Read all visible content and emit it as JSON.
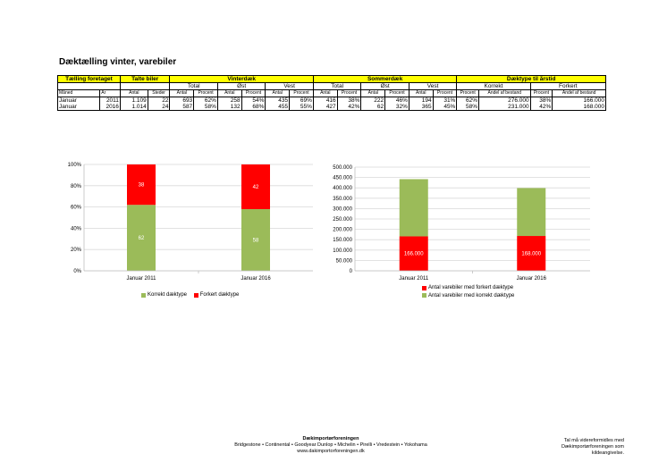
{
  "title": "Dæktælling vinter, varebiler",
  "table": {
    "group_headers": [
      "Tælling foretaget",
      "Talte biler",
      "Vinterdæk",
      "Sommerdæk",
      "Dæktype til årstid"
    ],
    "sub_headers": {
      "vinter": [
        "Total",
        "Øst",
        "Vest"
      ],
      "sommer": [
        "Total",
        "Øst",
        "Vest"
      ],
      "daektype": [
        "Korrekt",
        "Forkert"
      ]
    },
    "col_headers": [
      "Måned",
      "År",
      "Antal",
      "Steder",
      "Antal",
      "Procent",
      "Antal",
      "Procent",
      "Antal",
      "Procent",
      "Antal",
      "Procent",
      "Antal",
      "Procent",
      "Antal",
      "Procent",
      "Procent",
      "Andel af bestand",
      "Procent",
      "Andel af bestand"
    ],
    "rows": [
      [
        "Januar",
        "2011",
        "1.109",
        "22",
        "693",
        "62%",
        "258",
        "54%",
        "435",
        "69%",
        "416",
        "38%",
        "222",
        "46%",
        "194",
        "31%",
        "62%",
        "276.000",
        "38%",
        "166.000"
      ],
      [
        "Januar",
        "2016",
        "1.014",
        "24",
        "587",
        "58%",
        "132",
        "68%",
        "455",
        "55%",
        "427",
        "42%",
        "62",
        "32%",
        "365",
        "45%",
        "58%",
        "231.000",
        "42%",
        "168.000"
      ]
    ]
  },
  "chart_data": [
    {
      "type": "bar",
      "stacked": true,
      "categories": [
        "Januar 2011",
        "Januar 2016"
      ],
      "series": [
        {
          "name": "Korrekt dæktype",
          "values": [
            62,
            58
          ],
          "color": "#9bbb59"
        },
        {
          "name": "Forkert dæktype",
          "values": [
            38,
            42
          ],
          "color": "#ff0000"
        }
      ],
      "ylim": [
        0,
        100
      ],
      "yticks": [
        "0%",
        "20%",
        "40%",
        "60%",
        "80%",
        "100%"
      ],
      "legend": "bottom",
      "grid": true
    },
    {
      "type": "bar",
      "stacked": true,
      "categories": [
        "Januar 2011",
        "Januar 2016"
      ],
      "series": [
        {
          "name": "Antal varebiler med forkert dæktype",
          "values": [
            166000,
            168000
          ],
          "labels": [
            "166.000",
            "168.000"
          ],
          "color": "#ff0000"
        },
        {
          "name": "Antal varebiler med korrekt dæktype",
          "values": [
            276000,
            231000
          ],
          "color": "#9bbb59"
        }
      ],
      "ylim": [
        0,
        500000
      ],
      "yticks": [
        "0",
        "50.000",
        "100.000",
        "150.000",
        "200.000",
        "250.000",
        "300.000",
        "350.000",
        "400.000",
        "450.000",
        "500.000"
      ],
      "legend": "bottom",
      "grid": true
    }
  ],
  "footer": {
    "org": "Dækimportørforeningen",
    "members": "Bridgestone • Continental • Goodyear Dunlop • Michelin • Pirelli • Vredestein • Yokohama",
    "url": "www.dakimportorforeningen.dk",
    "note": "Tal må videreformidles med Dækimportørforeningen som kildeangivelse."
  }
}
